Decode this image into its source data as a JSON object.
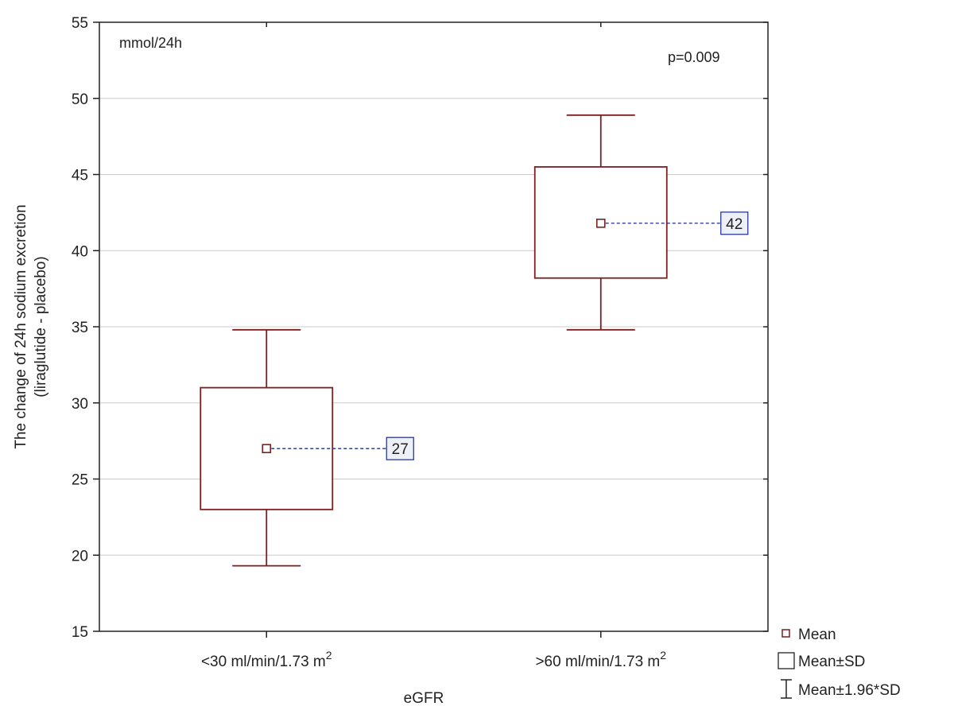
{
  "chart_data": {
    "type": "box",
    "ylabel_lines": [
      "The change of 24h sodium excretion",
      "(liraglutide - placebo)"
    ],
    "xlabel": "eGFR",
    "units_label": "mmol/24h",
    "annotation": "p=0.009",
    "ylim": [
      15,
      55
    ],
    "yticks": [
      15,
      20,
      25,
      30,
      35,
      40,
      45,
      50,
      55
    ],
    "grid": true,
    "categories": [
      {
        "main": "<30 ml/min/1.73 m",
        "sup": "2"
      },
      {
        "main": ">60 ml/min/1.73 m",
        "sup": "2"
      }
    ],
    "groups": [
      {
        "mean": 27,
        "mean_label": "27",
        "sd_low": 23,
        "sd_high": 31,
        "ci_low": 19.3,
        "ci_high": 34.8
      },
      {
        "mean": 41.8,
        "mean_label": "42",
        "sd_low": 38.2,
        "sd_high": 45.5,
        "ci_low": 34.8,
        "ci_high": 48.9
      }
    ],
    "legend": {
      "placement": "bottom-right",
      "items": [
        {
          "label": "Mean",
          "symbol": "small-square"
        },
        {
          "label": "Mean±SD",
          "symbol": "box"
        },
        {
          "label": "Mean±1.96*SD",
          "symbol": "whisker"
        }
      ]
    },
    "colors": {
      "box": "#7b1f1f",
      "mean_line": "#1a2b8c",
      "label_border": "#1a2b8c",
      "label_fill": "#eef0f8",
      "grid": "#cccccc"
    }
  }
}
